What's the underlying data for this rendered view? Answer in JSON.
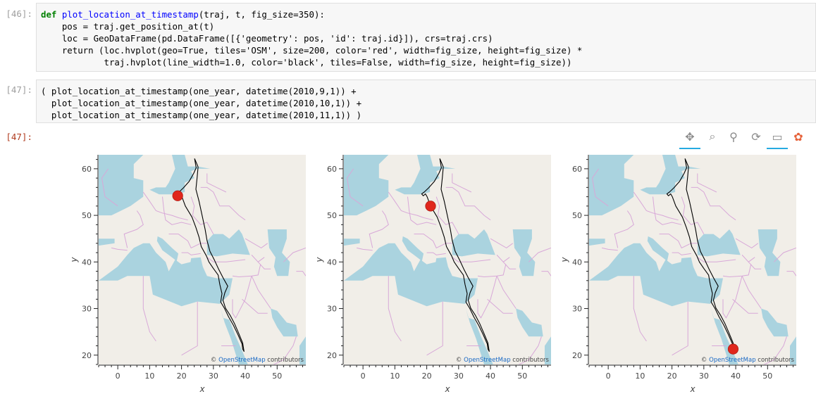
{
  "cells": {
    "c46": {
      "prompt": "[46]:",
      "lines": [
        "def plot_location_at_timestamp(traj, t, fig_size=350):",
        "    pos = traj.get_position_at(t)",
        "    loc = GeoDataFrame(pd.DataFrame([{'geometry': pos, 'id': traj.id}]), crs=traj.crs)",
        "    return (loc.hvplot(geo=True, tiles='OSM', size=200, color='red', width=fig_size, height=fig_size) *",
        "            traj.hvplot(line_width=1.0, color='black', tiles=False, width=fig_size, height=fig_size))"
      ]
    },
    "c47": {
      "prompt": "[47]:",
      "lines": [
        "( plot_location_at_timestamp(one_year, datetime(2010,9,1)) +",
        "  plot_location_at_timestamp(one_year, datetime(2010,10,1)) +",
        "  plot_location_at_timestamp(one_year, datetime(2010,11,1)) )"
      ]
    },
    "out47": {
      "prompt": "[47]:"
    }
  },
  "toolbar": {
    "tools": [
      {
        "name": "pan-icon",
        "glyph": "✥",
        "active": true
      },
      {
        "name": "box-zoom-icon",
        "glyph": "⌕",
        "active": false
      },
      {
        "name": "wheel-zoom-icon",
        "glyph": "⚲",
        "active": false
      },
      {
        "name": "reset-icon",
        "glyph": "⟳",
        "active": false
      },
      {
        "name": "hover-icon",
        "glyph": "▭",
        "active": true
      },
      {
        "name": "bokeh-logo-icon",
        "glyph": "✿",
        "active": false
      }
    ]
  },
  "chart_data": [
    {
      "type": "scatter",
      "xlabel": "x",
      "ylabel": "y",
      "xlim": [
        -6,
        59
      ],
      "ylim": [
        18,
        63
      ],
      "xticks": [
        0,
        10,
        20,
        30,
        40,
        50
      ],
      "yticks": [
        20,
        30,
        40,
        50,
        60
      ],
      "marker": {
        "x": 18.8,
        "y": 54.2,
        "color": "#e0271d"
      },
      "attribution": {
        "symbol": "©",
        "link": "OpenStreetMap",
        "rest": "contributors"
      }
    },
    {
      "type": "scatter",
      "xlabel": "x",
      "ylabel": "y",
      "xlim": [
        -6,
        59
      ],
      "ylim": [
        18,
        63
      ],
      "xticks": [
        0,
        10,
        20,
        30,
        40,
        50
      ],
      "yticks": [
        20,
        30,
        40,
        50,
        60
      ],
      "marker": {
        "x": 21.2,
        "y": 52.0,
        "color": "#e0271d"
      },
      "attribution": {
        "symbol": "©",
        "link": "OpenStreetMap",
        "rest": "contributors"
      }
    },
    {
      "type": "scatter",
      "xlabel": "x",
      "ylabel": "y",
      "xlim": [
        -6,
        59
      ],
      "ylim": [
        18,
        63
      ],
      "xticks": [
        0,
        10,
        20,
        30,
        40,
        50
      ],
      "yticks": [
        20,
        30,
        40,
        50,
        60
      ],
      "marker": {
        "x": 39.2,
        "y": 21.3,
        "color": "#e0271d"
      },
      "attribution": {
        "symbol": "©",
        "link": "OpenStreetMap",
        "rest": "contributors"
      }
    }
  ],
  "trajectory": [
    [
      24.1,
      62.2
    ],
    [
      24.6,
      60.2
    ],
    [
      23.8,
      59.0
    ],
    [
      22.4,
      57.3
    ],
    [
      20.6,
      55.9
    ],
    [
      19.2,
      55.0
    ],
    [
      18.4,
      54.6
    ],
    [
      18.9,
      54.2
    ],
    [
      19.6,
      54.6
    ],
    [
      20.1,
      54.0
    ],
    [
      21.2,
      52.0
    ],
    [
      23.3,
      49.6
    ],
    [
      24.5,
      47.4
    ],
    [
      25.5,
      45.3
    ],
    [
      26.2,
      43.3
    ],
    [
      27.8,
      41.3
    ],
    [
      28.6,
      40.0
    ],
    [
      30.0,
      38.6
    ],
    [
      31.5,
      37.2
    ],
    [
      32.0,
      35.2
    ],
    [
      32.7,
      33.2
    ],
    [
      32.3,
      31.4
    ],
    [
      33.5,
      30.0
    ],
    [
      34.8,
      28.2
    ],
    [
      36.3,
      26.4
    ],
    [
      37.7,
      24.4
    ],
    [
      39.0,
      22.4
    ],
    [
      39.2,
      21.3
    ],
    [
      39.6,
      20.8
    ],
    [
      39.2,
      22.6
    ],
    [
      38.0,
      24.6
    ],
    [
      36.6,
      26.8
    ],
    [
      35.2,
      28.6
    ],
    [
      33.8,
      30.1
    ],
    [
      33.0,
      31.8
    ],
    [
      33.6,
      33.4
    ],
    [
      34.5,
      34.8
    ],
    [
      33.2,
      36.4
    ],
    [
      31.6,
      38.5
    ],
    [
      30.4,
      40.3
    ],
    [
      28.9,
      42.3
    ],
    [
      28.0,
      44.6
    ],
    [
      27.4,
      47.0
    ],
    [
      26.4,
      50.2
    ],
    [
      25.5,
      53.0
    ],
    [
      24.5,
      55.6
    ],
    [
      24.9,
      58.2
    ],
    [
      25.2,
      60.4
    ],
    [
      24.1,
      62.2
    ]
  ],
  "colors": {
    "land": "#f1eee8",
    "water": "#aad3df",
    "border": "#d8a8d8",
    "track": "#000000"
  }
}
